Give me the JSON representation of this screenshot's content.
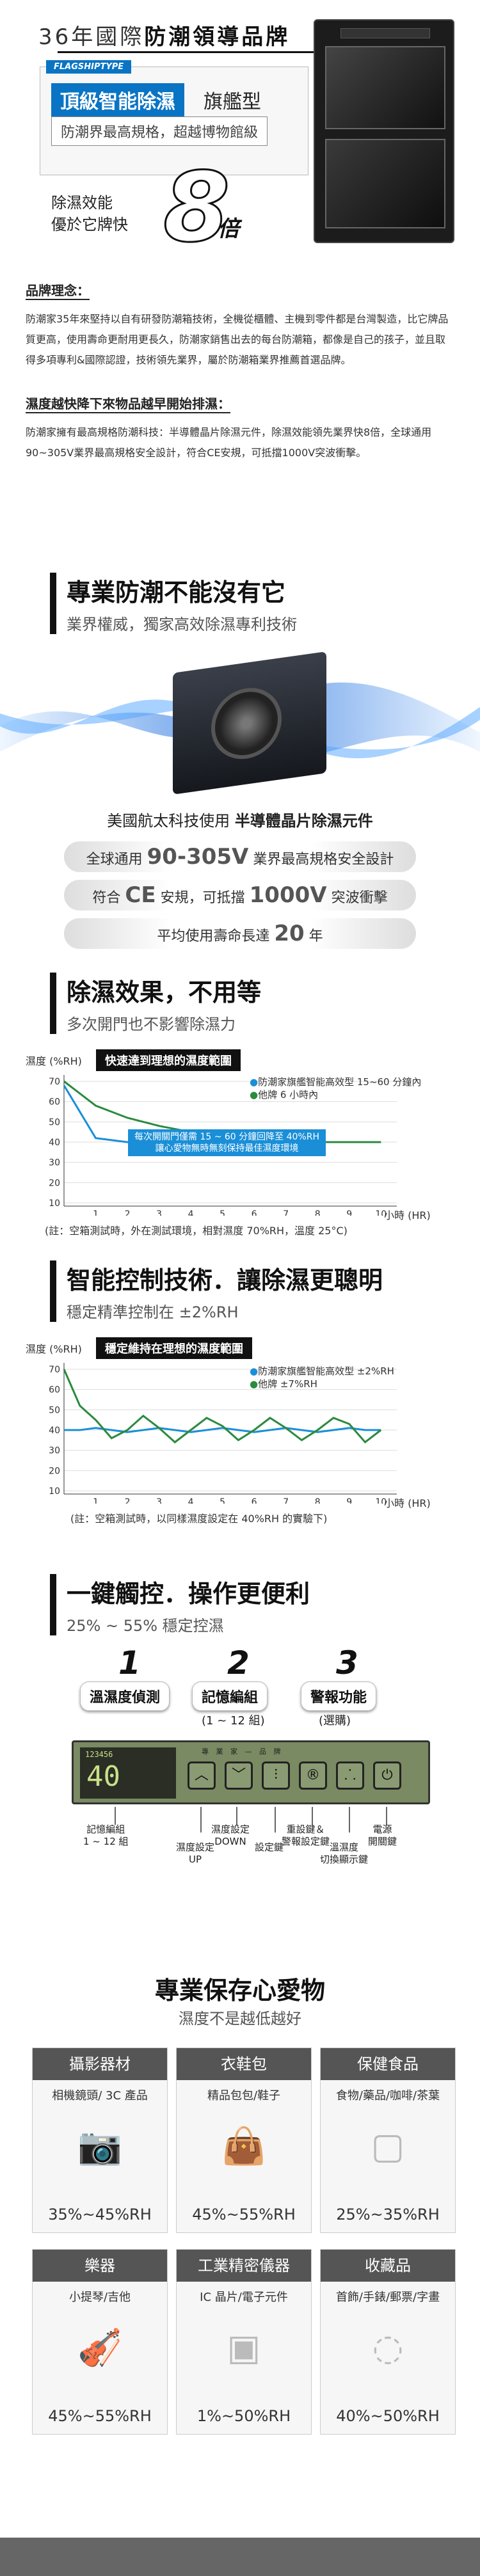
{
  "hero": {
    "title_prefix": "36年國際",
    "title_emph": "防潮領導品牌",
    "flagship_type": "FLAGSHIPTYPE",
    "tag_main": "頂級智能除濕",
    "tag_main_suffix": "旗艦型",
    "tag_sub": "防潮界最高規格，超越博物館級",
    "effect_line1": "除濕效能",
    "effect_line2": "優於它牌快",
    "big_number": "8",
    "big_unit": "倍"
  },
  "brand": {
    "h1": "品牌理念：",
    "p1": "防潮家35年來堅持以自有研發防潮箱技術，全機從櫃體、主機到零件都是台灣製造，比它牌品質更高，使用壽命更耐用更長久，防潮家銷售出去的每台防潮箱，都像是自己的孩子，並且取得多項專利&國際認證，技術領先業界，屬於防潮箱業界推薦首選品牌。",
    "h2": "濕度越快降下來物品越早開始排濕：",
    "p2": "防潮家擁有最高規格防潮科技：半導體晶片除濕元件，除濕效能領先業界快8倍，全球通用90~305V業界最高規格安全設計，符合CE安規，可抵擋1000V突波衝擊。"
  },
  "tech": {
    "title": "專業防潮不能沒有它",
    "subtitle": "業界權威，獨家高效除濕專利技術",
    "caption_prefix": "美國航太科技使用",
    "caption_emph": "半導體晶片除濕元件",
    "pill1_a": "全球通用",
    "pill1_big": "90-305V",
    "pill1_b": "業界最高規格安全設計",
    "pill2_a": "符合",
    "pill2_big1": "CE",
    "pill2_b": "安規，可抵擋",
    "pill2_big2": "1000V",
    "pill2_c": "突波衝擊",
    "pill3_a": "平均使用壽命長達",
    "pill3_big": "20",
    "pill3_b": "年"
  },
  "effect": {
    "title": "除濕效果，不用等",
    "subtitle": "多次開門也不影響除濕力",
    "ylabel": "濕度 (%RH)",
    "chart_head": "快速達到理想的濕度範圍",
    "legend1": "防潮家旗艦智能高效型 15~60 分鐘內",
    "legend2": "他牌 6 小時內",
    "callout1": "每次開關門僅需 15 ~ 60 分鐘回降至 40%RH",
    "callout2": "讓心愛物無時無刻保持最佳濕度環境",
    "xlabel": "小時 (HR)",
    "note": "(註：空箱測試時，外在測試環境，相對濕度 70%RH，溫度 25°C)"
  },
  "control": {
    "title": "智能控制技術．讓除濕更聰明",
    "subtitle": "穩定精準控制在 ±2%RH",
    "ylabel": "濕度 (%RH)",
    "chart_head": "穩定維持在理想的濕度範圍",
    "legend1": "防潮家旗艦智能高效型 ±2%RH",
    "legend2": "他牌 ±7%RH",
    "xlabel": "小時 (HR)",
    "note": "(註：空箱測試時，以同樣濕度設定在 40%RH 的實驗下)"
  },
  "touch": {
    "title": "一鍵觸控．操作更便利",
    "subtitle": "25% ~ 55% 穩定控濕",
    "steps": [
      {
        "num": "1",
        "label": "溫濕度偵測",
        "sub": ""
      },
      {
        "num": "2",
        "label": "記憶編組",
        "sub": "(1 ~ 12 組)"
      },
      {
        "num": "3",
        "label": "警報功能",
        "sub": "(選購)"
      }
    ],
    "lcd_top": "123456",
    "lcd_main": "40",
    "panel_brand": "專 業 家 — 品 牌",
    "annos": {
      "a1": "記憶編組\n1 ~ 12 組",
      "a2": "濕度設定\nUP",
      "a3": "濕度設定\nDOWN",
      "a4": "設定鍵",
      "a5": "重設鍵＆\n警報設定鍵",
      "a6": "溫濕度\n切換顯示鍵",
      "a7": "電源\n開關鍵"
    }
  },
  "care": {
    "title": "專業保存心愛物",
    "subtitle": "濕度不是越低越好",
    "cards": [
      {
        "head": "攝影器材",
        "sub": "相機鏡頭/ 3C 產品",
        "range": "35%~45%RH",
        "icon": "camera-icon",
        "glyph": "📷"
      },
      {
        "head": "衣鞋包",
        "sub": "精品包包/鞋子",
        "range": "45%~55%RH",
        "icon": "handbag-icon",
        "glyph": "👜"
      },
      {
        "head": "保健食品",
        "sub": "食物/藥品/咖啡/茶葉",
        "range": "25%~35%RH",
        "icon": "food-box-icon",
        "glyph": "▢"
      },
      {
        "head": "樂器",
        "sub": "小提琴/吉他",
        "range": "45%~55%RH",
        "icon": "violin-icon",
        "glyph": "🎻"
      },
      {
        "head": "工業精密儀器",
        "sub": "IC 晶片/電子元件",
        "range": "1%~50%RH",
        "icon": "chip-icon",
        "glyph": "▣"
      },
      {
        "head": "收藏品",
        "sub": "首飾/手錶/郵票/字畫",
        "range": "40%~50%RH",
        "icon": "necklace-icon",
        "glyph": "◌"
      }
    ]
  },
  "chart_data": [
    {
      "type": "line",
      "title": "快速達到理想的濕度範圍",
      "xlabel": "小時 (HR)",
      "ylabel": "濕度 (%RH)",
      "x": [
        0,
        1,
        2,
        3,
        4,
        5,
        6,
        7,
        8,
        9,
        10
      ],
      "xlim": [
        0,
        10.5
      ],
      "ylim": [
        10,
        70
      ],
      "yticks": [
        10,
        20,
        30,
        40,
        50,
        60,
        70
      ],
      "series": [
        {
          "name": "防潮家旗艦智能高效型 15~60 分鐘內",
          "color": "#1a8fd8",
          "values": [
            68,
            42,
            40,
            40,
            40,
            40,
            40,
            40,
            40,
            40,
            40
          ]
        },
        {
          "name": "他牌 6 小時內",
          "color": "#2b8a3e",
          "values": [
            70,
            58,
            52,
            48,
            45,
            43,
            41,
            40,
            40,
            40,
            40
          ]
        }
      ]
    },
    {
      "type": "line",
      "title": "穩定維持在理想的濕度範圍",
      "xlabel": "小時 (HR)",
      "ylabel": "濕度 (%RH)",
      "x": [
        0,
        0.5,
        1,
        1.5,
        2,
        2.5,
        3,
        3.5,
        4,
        4.5,
        5,
        5.5,
        6,
        6.5,
        7,
        7.5,
        8,
        8.5,
        9,
        9.5,
        10
      ],
      "xlim": [
        0,
        10.5
      ],
      "ylim": [
        10,
        70
      ],
      "yticks": [
        10,
        20,
        30,
        40,
        50,
        60,
        70
      ],
      "series": [
        {
          "name": "防潮家旗艦智能高效型 ±2%RH",
          "color": "#1a8fd8",
          "values": [
            40,
            40,
            41,
            40,
            39,
            40,
            41,
            40,
            39,
            40,
            41,
            40,
            39,
            40,
            41,
            40,
            39,
            40,
            41,
            40,
            40
          ]
        },
        {
          "name": "他牌 ±7%RH",
          "color": "#2b8a3e",
          "values": [
            70,
            52,
            45,
            36,
            40,
            47,
            41,
            34,
            40,
            46,
            42,
            35,
            40,
            46,
            41,
            35,
            40,
            46,
            43,
            34,
            40
          ]
        }
      ]
    }
  ]
}
